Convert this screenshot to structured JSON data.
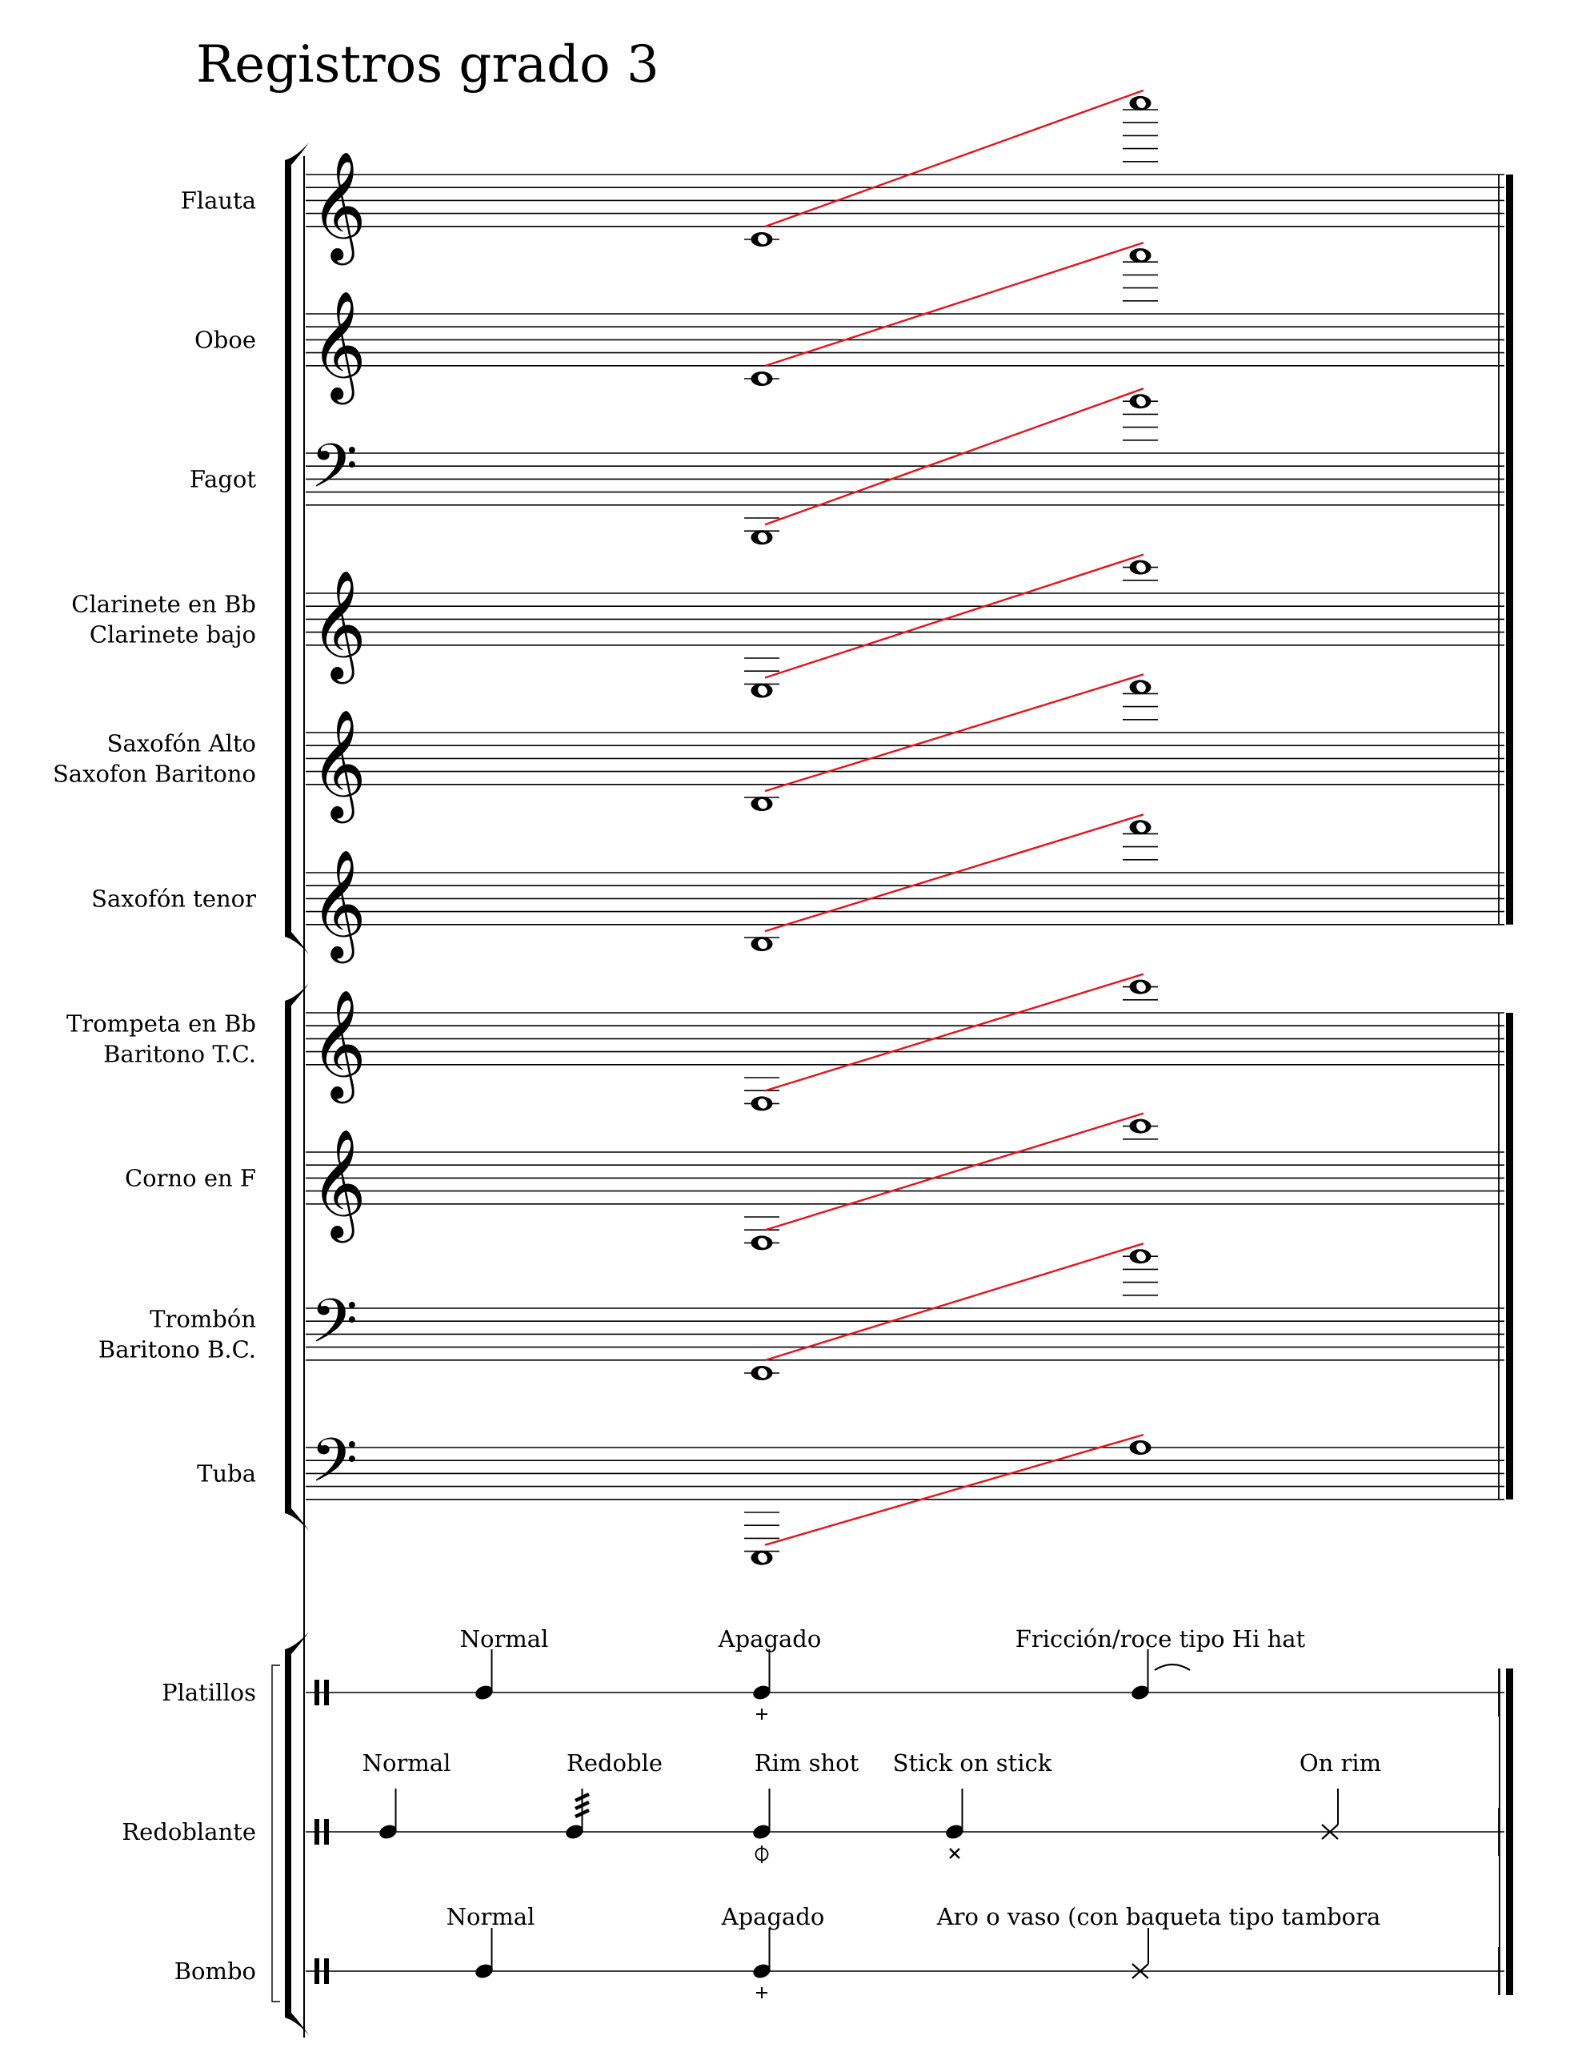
{
  "title": "Registros grado 3",
  "colors": {
    "staff": "#000000",
    "range_line": "#e8121b"
  },
  "icons": {
    "treble_clef": "treble-clef-icon",
    "bass_clef": "bass-clef-icon",
    "percussion_clef": "percussion-clef-icon",
    "whole_note": "whole-note-icon"
  },
  "woodwinds": [
    {
      "id": "flauta",
      "label_lines": [
        "Flauta"
      ],
      "clef": "treble",
      "low_note": "C4",
      "high_note": "C7"
    },
    {
      "id": "oboe",
      "label_lines": [
        "Oboe"
      ],
      "clef": "treble",
      "low_note": "C4",
      "high_note": "A6"
    },
    {
      "id": "fagot",
      "label_lines": [
        "Fagot"
      ],
      "clef": "bass",
      "low_note": "Bb1",
      "high_note": "Bb4"
    },
    {
      "id": "clarinete",
      "label_lines": [
        "Clarinete en Bb",
        "Clarinete bajo"
      ],
      "clef": "treble",
      "low_note": "E3",
      "high_note": "C6"
    },
    {
      "id": "saxofon-alto",
      "label_lines": [
        "Saxofón Alto",
        "Saxofon Baritono"
      ],
      "clef": "treble",
      "low_note": "Bb3",
      "high_note": "F6"
    },
    {
      "id": "saxofon-tenor",
      "label_lines": [
        "Saxofón tenor"
      ],
      "clef": "treble",
      "low_note": "Bb3",
      "high_note": "F6"
    }
  ],
  "brass": [
    {
      "id": "trompeta",
      "label_lines": [
        "Trompeta en Bb",
        "Baritono T.C."
      ],
      "clef": "treble",
      "low_note": "F#3",
      "high_note": "C6"
    },
    {
      "id": "corno",
      "label_lines": [
        "Corno en F"
      ],
      "clef": "treble",
      "low_note": "F#3",
      "high_note": "C6"
    },
    {
      "id": "trombon",
      "label_lines": [
        "Trombón",
        "Baritono B.C."
      ],
      "clef": "bass",
      "low_note": "E2",
      "high_note": "Bb4"
    },
    {
      "id": "tuba",
      "label_lines": [
        "Tuba"
      ],
      "clef": "bass",
      "low_note": "E1",
      "high_note": "A3"
    }
  ],
  "percussion": [
    {
      "id": "platillos",
      "label": "Platillos",
      "events": [
        {
          "id": "normal",
          "text": "Normal",
          "notehead": "normal"
        },
        {
          "id": "apagado",
          "text": "Apagado",
          "notehead": "normal",
          "mark": "plus"
        },
        {
          "id": "friccion",
          "text": "Fricción/roce tipo Hi hat",
          "notehead": "normal",
          "mark": "laissez-vibrer"
        }
      ]
    },
    {
      "id": "redoblante",
      "label": "Redoblante",
      "events": [
        {
          "id": "normal",
          "text": "Normal",
          "notehead": "normal"
        },
        {
          "id": "redoble",
          "text": "Redoble",
          "notehead": "normal",
          "mark": "tremolo"
        },
        {
          "id": "rim-shot",
          "text": "Rim shot",
          "notehead": "normal",
          "mark": "circle-plus"
        },
        {
          "id": "stick-on-stick",
          "text": "Stick on stick",
          "notehead": "normal",
          "mark": "small-x"
        },
        {
          "id": "on-rim",
          "text": "On rim",
          "notehead": "cross"
        }
      ]
    },
    {
      "id": "bombo",
      "label": "Bombo",
      "events": [
        {
          "id": "normal",
          "text": "Normal",
          "notehead": "normal"
        },
        {
          "id": "apagado",
          "text": "Apagado",
          "notehead": "normal",
          "mark": "plus"
        },
        {
          "id": "aro",
          "text": "Aro o vaso (con baqueta tipo tambora",
          "notehead": "cross"
        }
      ]
    }
  ]
}
